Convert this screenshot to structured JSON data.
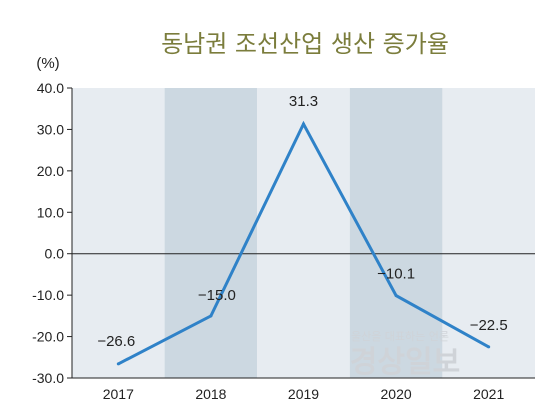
{
  "chart_data": {
    "type": "line",
    "title": "동남권 조선산업 생산 증가율",
    "unit_label": "(%)",
    "categories": [
      "2017",
      "2018",
      "2019",
      "2020",
      "2021"
    ],
    "series": [
      {
        "values": [
          -26.6,
          -15.0,
          31.3,
          -10.1,
          -22.5
        ]
      }
    ],
    "data_labels": [
      "−26.6",
      "−15.0",
      "31.3",
      "−10.1",
      "−22.5"
    ],
    "ylim": [
      -30,
      40
    ],
    "yticks": [
      40,
      30,
      20,
      10,
      0,
      -10,
      -20,
      -30
    ],
    "ytick_labels": [
      "40.0",
      "30.0",
      "20.0",
      "10.0",
      "0.0",
      "-10.0",
      "-20.0",
      "-30.0"
    ],
    "band_colors": [
      "#e7ecf1",
      "#ccd8e1"
    ],
    "line_color": "#2f82c8",
    "grid": false,
    "watermark": {
      "small": "울산을 대표하는 언론",
      "large": "경상일보"
    }
  }
}
